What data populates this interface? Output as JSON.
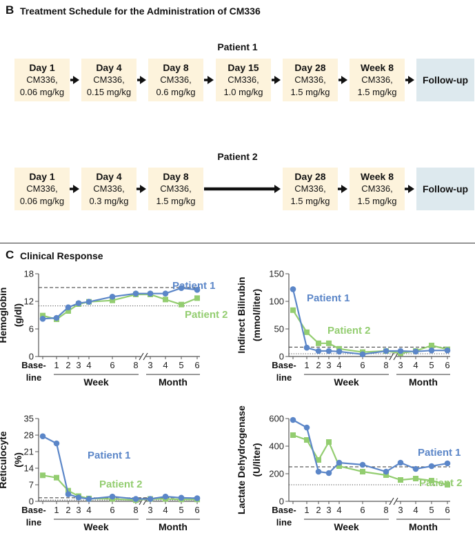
{
  "section_b": {
    "letter": "B",
    "title": "Treatment Schedule for the Administration of CM336"
  },
  "patient1": {
    "title": "Patient 1",
    "steps": [
      {
        "day": "Day 1",
        "drug": "CM336,",
        "dose": "0.06 mg/kg"
      },
      {
        "day": "Day 4",
        "drug": "CM336,",
        "dose": "0.15 mg/kg"
      },
      {
        "day": "Day 8",
        "drug": "CM336,",
        "dose": "0.6 mg/kg"
      },
      {
        "day": "Day 15",
        "drug": "CM336,",
        "dose": "1.0 mg/kg"
      },
      {
        "day": "Day 28",
        "drug": "CM336,",
        "dose": "1.5 mg/kg"
      },
      {
        "day": "Week 8",
        "drug": "CM336,",
        "dose": "1.5 mg/kg"
      }
    ],
    "followup": "Follow-up"
  },
  "patient2": {
    "title": "Patient 2",
    "steps": [
      {
        "day": "Day 1",
        "drug": "CM336,",
        "dose": "0.06 mg/kg"
      },
      {
        "day": "Day 4",
        "drug": "CM336,",
        "dose": "0.3 mg/kg"
      },
      {
        "day": "Day 8",
        "drug": "CM336,",
        "dose": "1.5 mg/kg"
      },
      {
        "day": "Day 28",
        "drug": "CM336,",
        "dose": "1.5 mg/kg"
      },
      {
        "day": "Week 8",
        "drug": "CM336,",
        "dose": "1.5 mg/kg"
      }
    ],
    "followup": "Follow-up"
  },
  "section_c": {
    "letter": "C",
    "title": "Clinical Response"
  },
  "colors": {
    "patient1": "#5b86c8",
    "patient2": "#93cd70",
    "box": "#fdf3dc",
    "followup_box": "#dde9ee"
  },
  "chart_data": [
    {
      "type": "line",
      "ylabel": [
        "Hemoglobin",
        "(g/dl)"
      ],
      "yticks": [
        0,
        6,
        12,
        18
      ],
      "ylim": [
        0,
        18
      ],
      "x": [
        "Base-line",
        "1",
        "2",
        "3",
        "4",
        "6",
        "8",
        "3",
        "4",
        "5",
        "6"
      ],
      "x_groups": [
        {
          "label": "Week",
          "range": [
            "1",
            "8"
          ]
        },
        {
          "label": "Month",
          "range": [
            "3",
            "6"
          ]
        }
      ],
      "reference_lines": {
        "dashed": 15,
        "dotted": 11
      },
      "series": [
        {
          "name": "Patient 1",
          "values": [
            8.2,
            8.4,
            10.7,
            11.6,
            11.9,
            13.0,
            13.7,
            13.7,
            13.7,
            14.9,
            14.5
          ]
        },
        {
          "name": "Patient 2",
          "values": [
            8.9,
            8.1,
            9.9,
            11.4,
            11.9,
            12.2,
            13.5,
            13.5,
            12.4,
            11.3,
            12.7
          ]
        }
      ],
      "labels": {
        "patient1": "Patient 1",
        "patient2": "Patient 2"
      }
    },
    {
      "type": "line",
      "ylabel": [
        "Indirect Bilirubin",
        "(mmol/liter)"
      ],
      "yticks": [
        0,
        50,
        100,
        150
      ],
      "ylim": [
        0,
        150
      ],
      "x": [
        "Base-line",
        "1",
        "2",
        "3",
        "4",
        "6",
        "8",
        "3",
        "4",
        "5",
        "6"
      ],
      "x_groups": [
        {
          "label": "Week",
          "range": [
            "1",
            "8"
          ]
        },
        {
          "label": "Month",
          "range": [
            "3",
            "6"
          ]
        }
      ],
      "reference_lines": {
        "dashed": 17,
        "dotted": 5
      },
      "series": [
        {
          "name": "Patient 1",
          "values": [
            122,
            16,
            10,
            10,
            9,
            4,
            10,
            10,
            9,
            11,
            11
          ]
        },
        {
          "name": "Patient 2",
          "values": [
            84,
            44,
            24,
            24,
            14,
            8,
            10,
            6,
            10,
            20,
            13
          ]
        }
      ],
      "labels": {
        "patient1": "Patient 1",
        "patient2": "Patient 2"
      }
    },
    {
      "type": "line",
      "ylabel": [
        "Reticulocyte",
        "(%)"
      ],
      "yticks": [
        0,
        7,
        14,
        21,
        28,
        35
      ],
      "ylim": [
        0,
        35
      ],
      "x": [
        "Base-line",
        "1",
        "2",
        "3",
        "4",
        "6",
        "8",
        "3",
        "4",
        "5",
        "6"
      ],
      "x_groups": [
        {
          "label": "Week",
          "range": [
            "1",
            "8"
          ]
        },
        {
          "label": "Month",
          "range": [
            "3",
            "6"
          ]
        }
      ],
      "reference_lines": {
        "dashed": 1.5,
        "dotted": 0.5
      },
      "series": [
        {
          "name": "Patient 1",
          "values": [
            27.5,
            24.5,
            3.0,
            1.6,
            1.0,
            2.0,
            1.0,
            1.0,
            2.0,
            1.5,
            1.3
          ]
        },
        {
          "name": "Patient 2",
          "values": [
            11.0,
            10.0,
            4.5,
            2.2,
            1.2,
            1.0,
            0.5,
            1.0,
            1.0,
            0.8,
            0.8
          ]
        }
      ],
      "labels": {
        "patient1": "Patient 1",
        "patient2": "Patient 2"
      }
    },
    {
      "type": "line",
      "ylabel": [
        "Lactate Dehydrogenase",
        "(U/liter)"
      ],
      "yticks": [
        0,
        200,
        400,
        600
      ],
      "ylim": [
        0,
        600
      ],
      "x": [
        "Base-line",
        "1",
        "2",
        "3",
        "4",
        "6",
        "8",
        "3",
        "4",
        "5",
        "6"
      ],
      "x_groups": [
        {
          "label": "Week",
          "range": [
            "1",
            "8"
          ]
        },
        {
          "label": "Month",
          "range": [
            "3",
            "6"
          ]
        }
      ],
      "reference_lines": {
        "dashed": 250,
        "dotted": 120
      },
      "series": [
        {
          "name": "Patient 1",
          "values": [
            590,
            535,
            215,
            205,
            280,
            265,
            215,
            280,
            235,
            255,
            275
          ]
        },
        {
          "name": "Patient 2",
          "values": [
            480,
            445,
            300,
            430,
            255,
            215,
            190,
            155,
            165,
            150,
            120
          ]
        }
      ],
      "labels": {
        "patient1": "Patient 1",
        "patient2": "Patient 2"
      }
    }
  ]
}
